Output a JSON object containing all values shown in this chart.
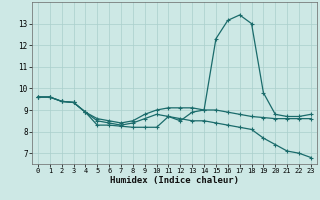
{
  "xlabel": "Humidex (Indice chaleur)",
  "bg_color": "#cde8e5",
  "grid_color": "#aacfcc",
  "line_color": "#1a6b6b",
  "xlim": [
    -0.5,
    23.5
  ],
  "ylim": [
    6.5,
    14.0
  ],
  "yticks": [
    7,
    8,
    9,
    10,
    11,
    12,
    13
  ],
  "xticks": [
    0,
    1,
    2,
    3,
    4,
    5,
    6,
    7,
    8,
    9,
    10,
    11,
    12,
    13,
    14,
    15,
    16,
    17,
    18,
    19,
    20,
    21,
    22,
    23
  ],
  "lines": [
    [
      9.6,
      9.6,
      9.4,
      9.35,
      8.9,
      8.3,
      8.3,
      8.25,
      8.2,
      8.2,
      8.2,
      8.7,
      8.5,
      8.9,
      9.0,
      12.3,
      13.15,
      13.4,
      13.0,
      9.8,
      8.8,
      8.7,
      8.7,
      8.8
    ],
    [
      9.6,
      9.6,
      9.4,
      9.35,
      8.9,
      8.6,
      8.5,
      8.4,
      8.5,
      8.8,
      9.0,
      9.1,
      9.1,
      9.1,
      9.0,
      9.0,
      8.9,
      8.8,
      8.7,
      8.65,
      8.6,
      8.6,
      8.6,
      8.6
    ],
    [
      9.6,
      9.6,
      9.4,
      9.35,
      8.9,
      8.5,
      8.4,
      8.3,
      8.4,
      8.6,
      8.8,
      8.7,
      8.6,
      8.5,
      8.5,
      8.4,
      8.3,
      8.2,
      8.1,
      7.7,
      7.4,
      7.1,
      7.0,
      6.8
    ]
  ],
  "marker": "+",
  "marker_size": 3.5,
  "line_width": 0.9
}
